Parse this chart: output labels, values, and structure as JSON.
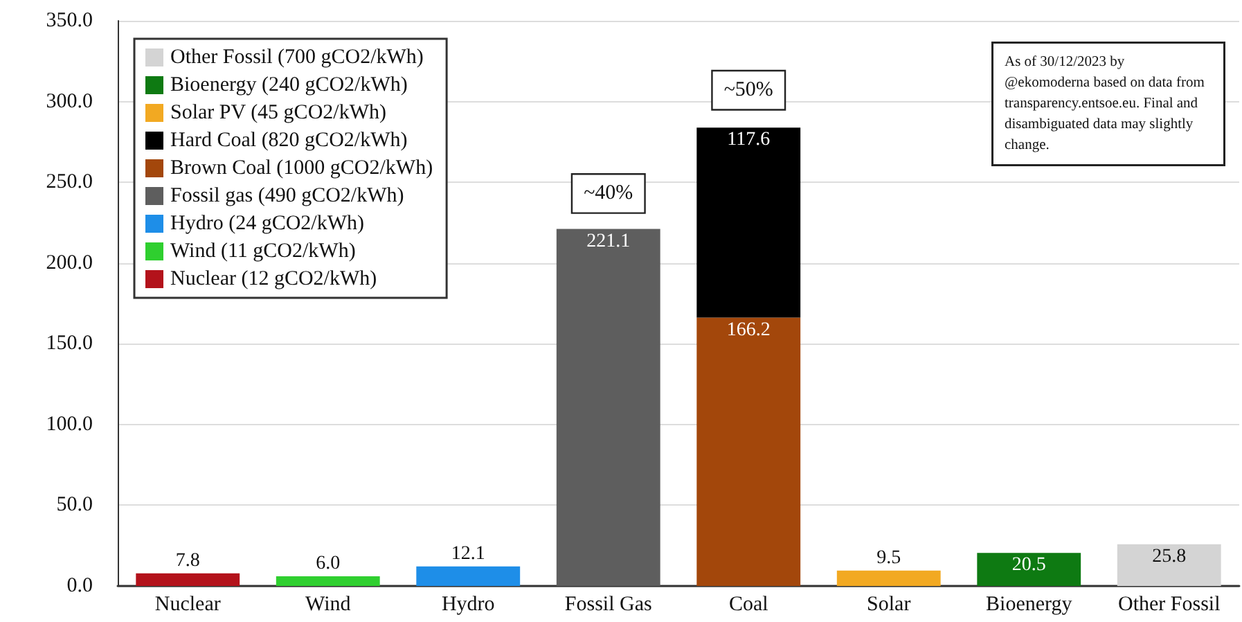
{
  "chart_data": {
    "type": "bar",
    "stacked": true,
    "categories": [
      "Nuclear",
      "Wind",
      "Hydro",
      "Fossil Gas",
      "Coal",
      "Solar",
      "Bioenergy",
      "Other Fossil"
    ],
    "series": [
      {
        "name": "Nuclear (12 gCO2/kWh)",
        "color": "#b3121b",
        "values": [
          7.8,
          null,
          null,
          null,
          null,
          null,
          null,
          null
        ]
      },
      {
        "name": "Wind (11 gCO2/kWh)",
        "color": "#2fcf2f",
        "values": [
          null,
          6.0,
          null,
          null,
          null,
          null,
          null,
          null
        ],
        "value_labels": [
          null,
          "6.0",
          null,
          null,
          null,
          null,
          null,
          null
        ]
      },
      {
        "name": "Hydro (24 gCO2/kWh)",
        "color": "#1e8ee8",
        "values": [
          null,
          null,
          12.1,
          null,
          null,
          null,
          null,
          null
        ]
      },
      {
        "name": "Fossil gas (490 gCO2/kWh)",
        "color": "#5e5e5e",
        "values": [
          null,
          null,
          null,
          221.1,
          null,
          null,
          null,
          null
        ]
      },
      {
        "name": "Brown Coal (1000 gCO2/kWh)",
        "color": "#a3470b",
        "values": [
          null,
          null,
          null,
          null,
          166.2,
          null,
          null,
          null
        ]
      },
      {
        "name": "Hard Coal (820 gCO2/kWh)",
        "color": "#000000",
        "values": [
          null,
          null,
          null,
          null,
          117.6,
          null,
          null,
          null
        ]
      },
      {
        "name": "Solar PV (45 gCO2/kWh)",
        "color": "#f2a922",
        "values": [
          null,
          null,
          null,
          null,
          null,
          9.5,
          null,
          null
        ]
      },
      {
        "name": "Bioenergy (240 gCO2/kWh)",
        "color": "#0e7a12",
        "values": [
          null,
          null,
          null,
          null,
          null,
          null,
          20.5,
          null
        ]
      },
      {
        "name": "Other Fossil (700 gCO2/kWh)",
        "color": "#d4d4d4",
        "values": [
          null,
          null,
          null,
          null,
          null,
          null,
          null,
          25.8
        ]
      }
    ],
    "ylim": [
      0,
      350
    ],
    "yticks": [
      {
        "value": 0,
        "label": "0.0"
      },
      {
        "value": 50,
        "label": "50.0"
      },
      {
        "value": 100,
        "label": "100.0"
      },
      {
        "value": 150,
        "label": "150.0"
      },
      {
        "value": 200,
        "label": "200.0"
      },
      {
        "value": 250,
        "label": "250.0"
      },
      {
        "value": 300,
        "label": "300.0"
      },
      {
        "value": 350,
        "label": "350.0"
      }
    ],
    "grid": "y",
    "legend": "top left",
    "data_labels": true,
    "annotations": [
      "~40%",
      "~50%",
      "As of 30/12/2023 by @ekomoderna based on data from transparency.entsoe.eu. Final and disambiguated data may slightly change."
    ]
  }
}
